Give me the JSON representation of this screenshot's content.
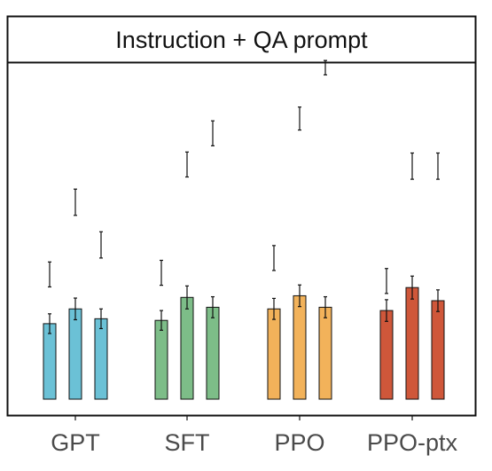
{
  "chart_data": {
    "type": "bar",
    "title": "Instruction + QA prompt",
    "categories": [
      "GPT",
      "SFT",
      "PPO",
      "PPO-ptx"
    ],
    "colors": [
      "#6bc1d6",
      "#7dbd88",
      "#f2b25a",
      "#cf573a"
    ],
    "ylim": [
      0,
      10
    ],
    "grid": false,
    "legend": "none",
    "bars": [
      [
        {
          "value": 2.3,
          "err": 0.3
        },
        {
          "value": 2.75,
          "err": 0.33
        },
        {
          "value": 2.45,
          "err": 0.3
        }
      ],
      [
        {
          "value": 2.4,
          "err": 0.3
        },
        {
          "value": 3.1,
          "err": 0.35
        },
        {
          "value": 2.8,
          "err": 0.32
        }
      ],
      [
        {
          "value": 2.75,
          "err": 0.32
        },
        {
          "value": 3.15,
          "err": 0.33
        },
        {
          "value": 2.8,
          "err": 0.32
        }
      ],
      [
        {
          "value": 2.7,
          "err": 0.33
        },
        {
          "value": 3.4,
          "err": 0.35
        },
        {
          "value": 3.0,
          "err": 0.33
        }
      ]
    ],
    "upper_errorbars": [
      [
        {
          "value": 3.8,
          "err": 0.38
        },
        {
          "value": 6.0,
          "err": 0.4
        },
        {
          "value": 4.7,
          "err": 0.4
        }
      ],
      [
        {
          "value": 3.85,
          "err": 0.38
        },
        {
          "value": 7.15,
          "err": 0.38
        },
        {
          "value": 8.1,
          "err": 0.38
        }
      ],
      [
        {
          "value": 4.3,
          "err": 0.38
        },
        {
          "value": 8.55,
          "err": 0.35
        },
        {
          "value": 10.1,
          "err": 0.22
        }
      ],
      [
        {
          "value": 3.6,
          "err": 0.38
        },
        {
          "value": 7.1,
          "err": 0.4
        },
        {
          "value": 7.1,
          "err": 0.4
        }
      ]
    ]
  }
}
